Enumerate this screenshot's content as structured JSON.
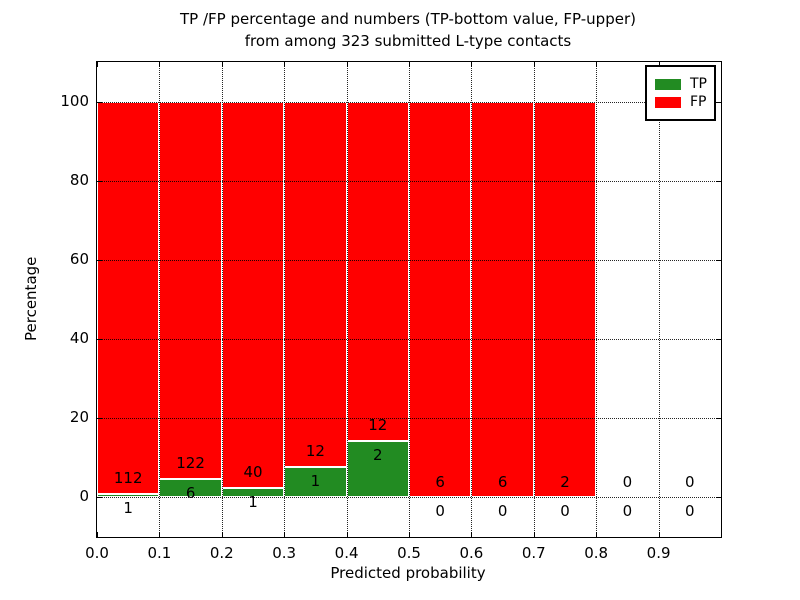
{
  "figure": {
    "title_line1": "TP /FP percentage and numbers (TP-bottom value, FP-upper)",
    "title_line2": "from among 323 submitted L-type contacts"
  },
  "chart_data": {
    "type": "bar",
    "stacked": true,
    "title": "TP /FP percentage and numbers (TP-bottom value, FP-upper) from among 323 submitted L-type contacts",
    "xlabel": "Predicted probability",
    "ylabel": "Percentage",
    "xlim": [
      0.0,
      1.0
    ],
    "ylim": [
      -10,
      110
    ],
    "x_ticks": [
      "0.0",
      "0.1",
      "0.2",
      "0.3",
      "0.4",
      "0.5",
      "0.6",
      "0.7",
      "0.8",
      "0.9"
    ],
    "y_ticks": [
      "0",
      "20",
      "40",
      "60",
      "80",
      "100"
    ],
    "grid": "dotted",
    "legend_position": "upper right",
    "total_submitted": 323,
    "series": [
      {
        "name": "TP",
        "color": "#228b22"
      },
      {
        "name": "FP",
        "color": "#ff0000"
      }
    ],
    "bar_edge_color": "#ffffff",
    "bins": [
      {
        "x0": 0.0,
        "x1": 0.1,
        "tp": 1,
        "fp": 112
      },
      {
        "x0": 0.1,
        "x1": 0.2,
        "tp": 6,
        "fp": 122
      },
      {
        "x0": 0.2,
        "x1": 0.3,
        "tp": 1,
        "fp": 40
      },
      {
        "x0": 0.3,
        "x1": 0.4,
        "tp": 1,
        "fp": 12
      },
      {
        "x0": 0.4,
        "x1": 0.5,
        "tp": 2,
        "fp": 12
      },
      {
        "x0": 0.5,
        "x1": 0.6,
        "tp": 0,
        "fp": 6
      },
      {
        "x0": 0.6,
        "x1": 0.7,
        "tp": 0,
        "fp": 6
      },
      {
        "x0": 0.7,
        "x1": 0.8,
        "tp": 0,
        "fp": 2
      },
      {
        "x0": 0.8,
        "x1": 0.9,
        "tp": 0,
        "fp": 0
      },
      {
        "x0": 0.9,
        "x1": 1.0,
        "tp": 0,
        "fp": 0
      }
    ]
  }
}
